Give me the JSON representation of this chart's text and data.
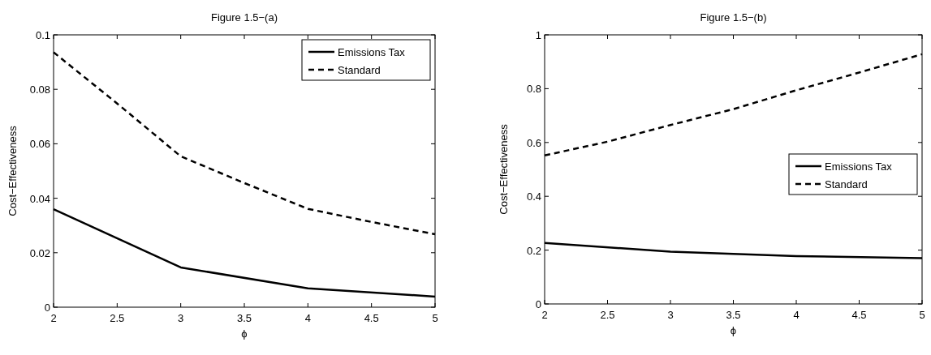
{
  "chart_data": [
    {
      "type": "line",
      "title": "Figure 1.5−(a)",
      "xlabel": "ϕ",
      "ylabel": "Cost−Effectiveness",
      "xlim": [
        2,
        5
      ],
      "xticks": [
        2,
        2.5,
        3,
        3.5,
        4,
        4.5,
        5
      ],
      "ylim": [
        0,
        0.1
      ],
      "yticks": [
        0,
        0.02,
        0.04,
        0.06,
        0.08,
        0.1
      ],
      "grid": false,
      "legend": "top right",
      "marker": "none",
      "series": [
        {
          "name": "Emissions Tax",
          "color": "#000000",
          "line_style": "solid",
          "x": [
            2,
            3,
            4,
            5
          ],
          "values": [
            0.036,
            0.0146,
            0.0069,
            0.0039
          ]
        },
        {
          "name": "Standard",
          "color": "#000000",
          "line_style": "dashed",
          "x": [
            2,
            2.5,
            3,
            3.5,
            4,
            4.5,
            5
          ],
          "values": [
            0.0936,
            0.0748,
            0.0554,
            0.0456,
            0.0361,
            0.0313,
            0.0268
          ]
        }
      ]
    },
    {
      "type": "line",
      "title": "Figure 1.5−(b)",
      "xlabel": "ϕ",
      "ylabel": "Cost−Effectiveness",
      "xlim": [
        2,
        5
      ],
      "xticks": [
        2,
        2.5,
        3,
        3.5,
        4,
        4.5,
        5
      ],
      "ylim": [
        0,
        1
      ],
      "yticks": [
        0,
        0.2,
        0.4,
        0.6,
        0.8,
        1
      ],
      "grid": false,
      "legend": "right",
      "marker": "none",
      "series": [
        {
          "name": "Emissions Tax",
          "color": "#000000",
          "line_style": "solid",
          "x": [
            2,
            3,
            4,
            5
          ],
          "values": [
            0.227,
            0.194,
            0.178,
            0.17
          ]
        },
        {
          "name": "Standard",
          "color": "#000000",
          "line_style": "dashed",
          "x": [
            2,
            2.5,
            3,
            3.5,
            4,
            4.5,
            5
          ],
          "values": [
            0.552,
            0.603,
            0.665,
            0.724,
            0.794,
            0.86,
            0.928
          ]
        }
      ]
    }
  ]
}
